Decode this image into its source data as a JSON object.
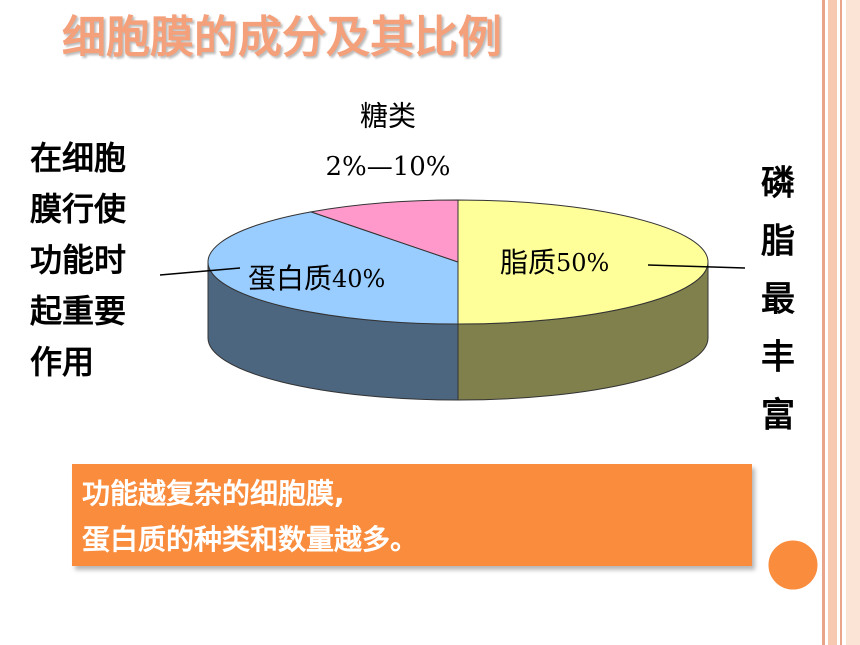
{
  "chart_data": {
    "type": "pie",
    "title": "细胞膜的成分及其比例",
    "categories": [
      "脂质",
      "蛋白质",
      "糖类"
    ],
    "values": [
      50,
      40,
      10
    ],
    "value_labels": [
      "50%",
      "40%",
      "2%—10%"
    ],
    "colors": [
      "#ffff99",
      "#99ccff",
      "#ff99cc"
    ],
    "annotations": {
      "left": [
        "在细胞",
        "膜行使",
        "功能时",
        "起重要",
        "作用"
      ],
      "right": [
        "磷",
        "脂",
        "最",
        "丰",
        "富"
      ],
      "box": [
        "功能越复杂的细胞膜,",
        "蛋白质的种类和数量越多。"
      ]
    }
  }
}
